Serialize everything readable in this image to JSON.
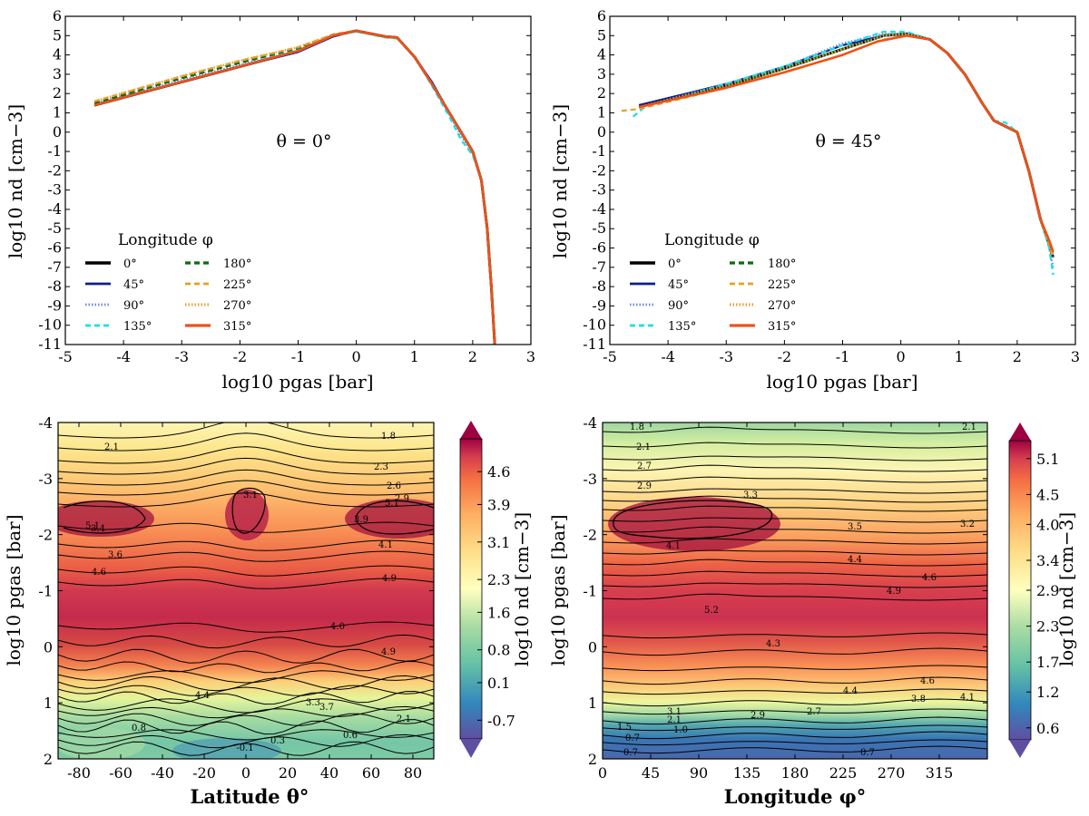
{
  "colors": {
    "phi0": "#000000",
    "phi45": "#0b1f8a",
    "phi90": "#6b8cde",
    "phi135": "#18e0e8",
    "phi180": "#0a6e0a",
    "phi225": "#e8a020",
    "phi270": "#e8a040",
    "phi315": "#f05018"
  },
  "chart_data": [
    {
      "id": "top-left",
      "type": "line",
      "title": "",
      "annotation": "θ = 0°",
      "xlabel": "log10 pgas [bar]",
      "ylabel": "log10 nd [cm−3]",
      "xlim": [
        -5,
        3
      ],
      "ylim": [
        -11,
        6
      ],
      "xticks": [
        "-5",
        "-4",
        "-3",
        "-2",
        "-1",
        "0",
        "1",
        "2",
        "3"
      ],
      "yticks": [
        "6",
        "5",
        "4",
        "3",
        "2",
        "1",
        "0",
        "-1",
        "-2",
        "-3",
        "-4",
        "-5",
        "-6",
        "-7",
        "-8",
        "-9",
        "-10",
        "-11"
      ],
      "legend_title": "Longitude φ",
      "legend": [
        "0°",
        "45°",
        "90°",
        "135°",
        "180°",
        "225°",
        "270°",
        "315°"
      ],
      "series": [
        {
          "name": "0°",
          "x": [
            -4.5,
            -3,
            -2,
            -1,
            -0.4,
            0,
            0.5,
            0.7,
            1.0,
            1.3,
            1.6,
            1.8,
            2.0,
            2.15,
            2.25,
            2.32,
            2.38
          ],
          "y": [
            1.4,
            2.6,
            3.4,
            4.2,
            5.0,
            5.25,
            4.95,
            4.9,
            3.9,
            2.5,
            1.0,
            0.0,
            -1.0,
            -2.5,
            -5,
            -8,
            -11
          ]
        },
        {
          "name": "45°",
          "x": [
            -4.5,
            -3,
            -2,
            -1,
            -0.4,
            0,
            0.5,
            0.7,
            1.0,
            1.3,
            1.6,
            1.8,
            2.0,
            2.15,
            2.25,
            2.32,
            2.38
          ],
          "y": [
            1.4,
            2.6,
            3.4,
            4.15,
            4.95,
            5.25,
            4.95,
            4.9,
            3.9,
            2.6,
            1.0,
            0.0,
            -1.0,
            -2.5,
            -5,
            -8,
            -11
          ]
        },
        {
          "name": "90°",
          "x": [
            -4.5,
            -3,
            -2,
            -1,
            -0.4,
            0,
            0.5,
            0.7,
            1.0,
            1.3,
            1.6,
            1.8,
            2.0,
            2.15,
            2.25,
            2.32,
            2.38
          ],
          "y": [
            1.5,
            2.7,
            3.5,
            4.2,
            5.0,
            5.25,
            4.95,
            4.9,
            3.9,
            2.5,
            0.9,
            -0.2,
            -1.1,
            -2.5,
            -5,
            -8,
            -11
          ]
        },
        {
          "name": "135°",
          "x": [
            -4.5,
            -3,
            -2,
            -1,
            -0.4,
            0,
            0.5,
            0.7,
            1.0,
            1.3,
            1.6,
            1.8,
            2.0,
            2.15,
            2.25,
            2.32,
            2.38
          ],
          "y": [
            1.5,
            2.8,
            3.6,
            4.3,
            5.0,
            5.2,
            4.9,
            4.85,
            3.9,
            2.4,
            0.8,
            -0.4,
            -1.2,
            -2.5,
            -5,
            -8,
            -11
          ]
        },
        {
          "name": "180°",
          "x": [
            -4.5,
            -3,
            -2,
            -1,
            -0.4,
            0,
            0.5,
            0.7,
            1.0,
            1.3,
            1.6,
            1.8,
            2.0,
            2.15,
            2.25,
            2.32,
            2.38
          ],
          "y": [
            1.5,
            2.8,
            3.6,
            4.35,
            5.05,
            5.25,
            4.95,
            4.9,
            3.9,
            2.5,
            1.0,
            0.0,
            -1.0,
            -2.5,
            -5,
            -8,
            -11
          ]
        },
        {
          "name": "225°",
          "x": [
            -4.5,
            -3,
            -2,
            -1,
            -0.4,
            0,
            0.5,
            0.7,
            1.0,
            1.3,
            1.6,
            1.8,
            2.0,
            2.15,
            2.25,
            2.32,
            2.38
          ],
          "y": [
            1.6,
            2.9,
            3.7,
            4.4,
            5.05,
            5.25,
            4.95,
            4.9,
            3.9,
            2.5,
            1.0,
            0.0,
            -1.0,
            -2.5,
            -5,
            -8,
            -11
          ]
        },
        {
          "name": "270°",
          "x": [
            -4.5,
            -3,
            -2,
            -1,
            -0.4,
            0,
            0.5,
            0.7,
            1.0,
            1.3,
            1.6,
            1.8,
            2.0,
            2.15,
            2.25,
            2.32,
            2.38
          ],
          "y": [
            1.6,
            2.9,
            3.7,
            4.4,
            5.05,
            5.25,
            4.95,
            4.9,
            3.9,
            2.5,
            1.0,
            0.0,
            -1.0,
            -2.5,
            -5,
            -8,
            -11
          ]
        },
        {
          "name": "315°",
          "x": [
            -4.5,
            -3,
            -2,
            -1,
            -0.4,
            0,
            0.5,
            0.7,
            1.0,
            1.3,
            1.6,
            1.8,
            2.0,
            2.15,
            2.25,
            2.32,
            2.38
          ],
          "y": [
            1.4,
            2.6,
            3.4,
            4.2,
            5.0,
            5.25,
            4.95,
            4.9,
            3.9,
            2.5,
            1.0,
            0.0,
            -1.0,
            -2.5,
            -5,
            -8,
            -11
          ]
        }
      ]
    },
    {
      "id": "top-right",
      "type": "line",
      "title": "",
      "annotation": "θ = 45°",
      "xlabel": "log10 pgas [bar]",
      "ylabel": "log10 nd [cm−3]",
      "xlim": [
        -5,
        3
      ],
      "ylim": [
        -11,
        6
      ],
      "xticks": [
        "-5",
        "-4",
        "-3",
        "-2",
        "-1",
        "0",
        "1",
        "2",
        "3"
      ],
      "yticks": [
        "6",
        "5",
        "4",
        "3",
        "2",
        "1",
        "0",
        "-1",
        "-2",
        "-3",
        "-4",
        "-5",
        "-6",
        "-7",
        "-8",
        "-9",
        "-10",
        "-11"
      ],
      "legend_title": "Longitude φ",
      "legend": [
        "0°",
        "45°",
        "90°",
        "135°",
        "180°",
        "225°",
        "270°",
        "315°"
      ],
      "series": [
        {
          "name": "0°",
          "x": [
            -4.5,
            -3,
            -2,
            -1,
            -0.3,
            0.1,
            0.5,
            0.8,
            1.1,
            1.4,
            1.6,
            1.8,
            2.0,
            2.2,
            2.4,
            2.55,
            2.62
          ],
          "y": [
            1.3,
            2.4,
            3.3,
            4.3,
            5.0,
            5.1,
            4.8,
            4.1,
            3.0,
            1.5,
            0.6,
            0.3,
            0.0,
            -2.0,
            -4.5,
            -5.8,
            -6.5
          ]
        },
        {
          "name": "45°",
          "x": [
            -4.5,
            -3,
            -2,
            -1,
            -0.3,
            0.1,
            0.5,
            0.8,
            1.1,
            1.4,
            1.6,
            1.8,
            2.0,
            2.2,
            2.4,
            2.55,
            2.62
          ],
          "y": [
            1.4,
            2.5,
            3.4,
            4.5,
            5.0,
            5.1,
            4.8,
            4.1,
            3.0,
            1.5,
            0.6,
            0.3,
            0.0,
            -2.0,
            -4.5,
            -5.8,
            -6.5
          ]
        },
        {
          "name": "90°",
          "x": [
            -4.5,
            -3,
            -2,
            -1,
            -0.3,
            0.1,
            0.5,
            0.8,
            1.1,
            1.4,
            1.6,
            1.8,
            2.0,
            2.2,
            2.4,
            2.55,
            2.62
          ],
          "y": [
            1.3,
            2.5,
            3.4,
            4.6,
            5.1,
            5.1,
            4.8,
            4.1,
            3.0,
            1.5,
            0.6,
            0.3,
            0.0,
            -2.0,
            -4.5,
            -6.0,
            -7.0
          ]
        },
        {
          "name": "135°",
          "x": [
            -4.6,
            -4.4,
            -3,
            -2,
            -1,
            -0.3,
            0.1,
            0.5,
            0.8,
            1.1,
            1.4,
            1.6,
            1.8,
            2.0,
            2.2,
            2.4,
            2.55,
            2.62
          ],
          "y": [
            0.8,
            1.3,
            2.5,
            3.4,
            4.5,
            5.2,
            5.2,
            4.8,
            4.1,
            3.0,
            1.5,
            0.6,
            0.5,
            0.0,
            -2.0,
            -4.5,
            -6.0,
            -7.4
          ]
        },
        {
          "name": "180°",
          "x": [
            -4.5,
            -3,
            -2,
            -1,
            -0.3,
            0.1,
            0.5,
            0.8,
            1.1,
            1.4,
            1.6,
            1.8,
            2.0,
            2.2,
            2.4,
            2.55,
            2.62
          ],
          "y": [
            1.3,
            2.4,
            3.3,
            4.3,
            5.0,
            5.1,
            4.8,
            4.1,
            3.0,
            1.5,
            0.6,
            0.3,
            0.0,
            -2.0,
            -4.5,
            -5.8,
            -6.5
          ]
        },
        {
          "name": "225°",
          "x": [
            -4.8,
            -4.5,
            -3,
            -2,
            -1,
            -0.3,
            0.1,
            0.5,
            0.8,
            1.1,
            1.4,
            1.6,
            1.8,
            2.0,
            2.2,
            2.4,
            2.55,
            2.62
          ],
          "y": [
            1.1,
            1.2,
            2.3,
            3.1,
            4.0,
            4.8,
            5.0,
            4.8,
            4.1,
            3.0,
            1.5,
            0.6,
            0.3,
            0.0,
            -2.0,
            -4.5,
            -5.8,
            -6.5
          ]
        },
        {
          "name": "270°",
          "x": [
            -4.5,
            -3,
            -2,
            -1,
            -0.3,
            0.1,
            0.5,
            0.8,
            1.1,
            1.4,
            1.6,
            1.8,
            2.0,
            2.2,
            2.4,
            2.55,
            2.62
          ],
          "y": [
            1.3,
            2.4,
            3.3,
            4.3,
            5.0,
            5.1,
            4.8,
            4.1,
            3.0,
            1.5,
            0.6,
            0.3,
            0.0,
            -2.0,
            -4.5,
            -5.8,
            -6.5
          ]
        },
        {
          "name": "315°",
          "x": [
            -4.5,
            -3,
            -2,
            -1,
            -0.4,
            0.1,
            0.5,
            0.8,
            1.1,
            1.4,
            1.6,
            1.8,
            2.0,
            2.2,
            2.4,
            2.55,
            2.62
          ],
          "y": [
            1.3,
            2.3,
            3.1,
            4.0,
            4.7,
            5.0,
            4.8,
            4.1,
            3.0,
            1.5,
            0.6,
            0.3,
            0.0,
            -2.0,
            -4.5,
            -5.6,
            -6.2
          ]
        }
      ]
    },
    {
      "id": "bottom-left",
      "type": "heatmap",
      "xlabel": "Latitude θ°",
      "ylabel": "log10 pgas [bar]",
      "xlim": [
        -90,
        90
      ],
      "ylim": [
        -4,
        2
      ],
      "xticks": [
        "-80",
        "-60",
        "-40",
        "-20",
        "0",
        "20",
        "40",
        "60",
        "80"
      ],
      "yticks": [
        "-4",
        "-3",
        "-2",
        "-1",
        "0",
        "1",
        "2"
      ],
      "colorbar_label": "log10 nd [cm−3]",
      "colorbar_ticks": [
        "4.6",
        "3.9",
        "3.1",
        "2.3",
        "1.6",
        "0.8",
        "0.1",
        "-0.7"
      ],
      "colorbar_range": [
        -1.1,
        5.3
      ],
      "contour_labels": [
        "2.1",
        "1.8",
        "2.3",
        "2.6",
        "2.9",
        "3.1",
        "3.4",
        "3.6",
        "3.9",
        "4.1",
        "4.6",
        "4.9",
        "5.1",
        "5.1",
        "3.7",
        "4.0",
        "4.9",
        "4.4",
        "3.3",
        "2.1",
        "0.8",
        "0.6",
        "0.3",
        "-0.1"
      ]
    },
    {
      "id": "bottom-right",
      "type": "heatmap",
      "xlabel": "Longitude φ°",
      "ylabel": "log10 pgas [bar]",
      "xlim": [
        0,
        360
      ],
      "ylim": [
        -4,
        2
      ],
      "xticks": [
        "0",
        "45",
        "90",
        "135",
        "180",
        "225",
        "270",
        "315"
      ],
      "yticks": [
        "-4",
        "-3",
        "-2",
        "-1",
        "0",
        "1",
        "2"
      ],
      "colorbar_label": "log10 nd [cm−3]",
      "colorbar_ticks": [
        "5.1",
        "4.5",
        "4.0",
        "3.4",
        "2.9",
        "2.3",
        "1.7",
        "1.2",
        "0.6"
      ],
      "colorbar_range": [
        0.4,
        5.4
      ],
      "contour_labels": [
        "1.8",
        "2.1",
        "2.1",
        "2.7",
        "2.9",
        "3.3",
        "3.5",
        "3.2",
        "4.1",
        "4.4",
        "4.6",
        "4.9",
        "5.2",
        "4.3",
        "4.6",
        "4.4",
        "3.8",
        "4.1",
        "3.1",
        "2.9",
        "2.7",
        "2.1",
        "1.5",
        "1.0",
        "0.7",
        "0.7",
        "0.7"
      ]
    }
  ]
}
